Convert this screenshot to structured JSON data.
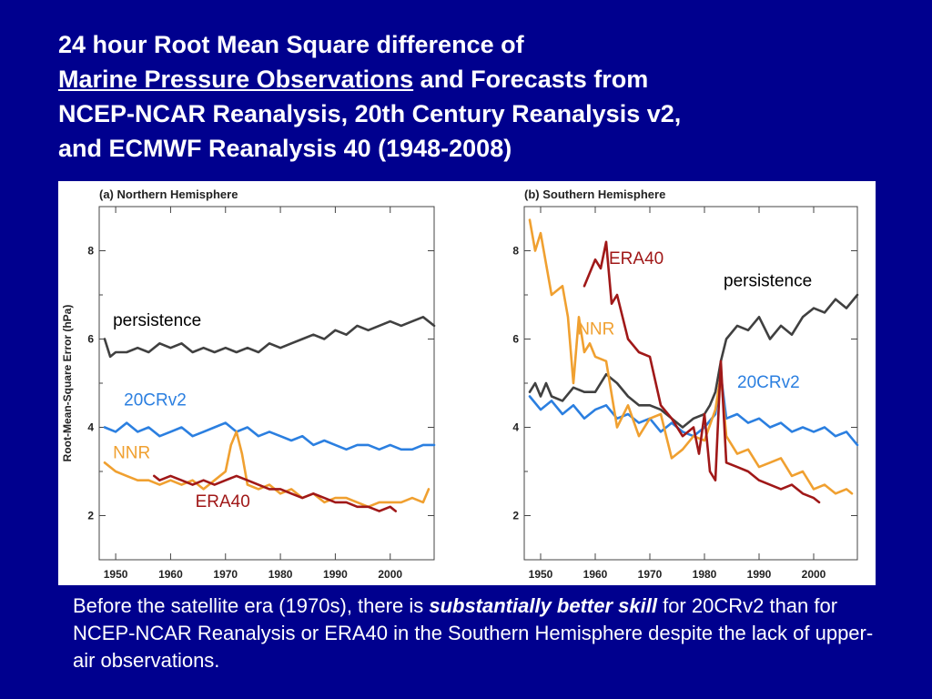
{
  "title": {
    "line1": "24 hour Root Mean Square difference of",
    "line2_underlined": "Marine Pressure Observations",
    "line2_rest": " and Forecasts from",
    "line3": "NCEP-NCAR Reanalysis, 20th Century Reanalysis v2,",
    "line4": "and ECMWF Reanalysis 40 (1948-2008)"
  },
  "caption": {
    "part1": "Before the satellite era (1970s), there is ",
    "emphasis": "substantially better skill",
    "part2": " for 20CRv2 than for NCEP-NCAR Reanalysis or ERA40 in the Southern Hemisphere despite the lack of upper-air observations."
  },
  "colors": {
    "background": "#00008e",
    "persistence": "#404040",
    "20CRv2": "#2b7fe0",
    "NNR": "#f0a030",
    "ERA40": "#a01818"
  },
  "chart_data": [
    {
      "type": "line",
      "title": "(a) Northern Hemisphere",
      "ylabel": "Root-Mean-Square Error (hPa)",
      "xlim": [
        1947,
        2008
      ],
      "ylim": [
        1,
        9
      ],
      "xticks": [
        1950,
        1960,
        1970,
        1980,
        1990,
        2000
      ],
      "yticks": [
        2,
        4,
        6,
        8
      ],
      "series": [
        {
          "name": "persistence",
          "color": "#404040",
          "x": [
            1948,
            1949,
            1950,
            1952,
            1954,
            1956,
            1958,
            1960,
            1962,
            1964,
            1966,
            1968,
            1970,
            1972,
            1974,
            1976,
            1978,
            1980,
            1982,
            1984,
            1986,
            1988,
            1990,
            1992,
            1994,
            1996,
            1998,
            2000,
            2002,
            2004,
            2006,
            2008
          ],
          "y": [
            6.0,
            5.6,
            5.7,
            5.7,
            5.8,
            5.7,
            5.9,
            5.8,
            5.9,
            5.7,
            5.8,
            5.7,
            5.8,
            5.7,
            5.8,
            5.7,
            5.9,
            5.8,
            5.9,
            6.0,
            6.1,
            6.0,
            6.2,
            6.1,
            6.3,
            6.2,
            6.3,
            6.4,
            6.3,
            6.4,
            6.5,
            6.3
          ]
        },
        {
          "name": "20CRv2",
          "color": "#2b7fe0",
          "x": [
            1948,
            1950,
            1952,
            1954,
            1956,
            1958,
            1960,
            1962,
            1964,
            1966,
            1968,
            1970,
            1972,
            1974,
            1976,
            1978,
            1980,
            1982,
            1984,
            1986,
            1988,
            1990,
            1992,
            1994,
            1996,
            1998,
            2000,
            2002,
            2004,
            2006,
            2008
          ],
          "y": [
            4.0,
            3.9,
            4.1,
            3.9,
            4.0,
            3.8,
            3.9,
            4.0,
            3.8,
            3.9,
            4.0,
            4.1,
            3.9,
            4.0,
            3.8,
            3.9,
            3.8,
            3.7,
            3.8,
            3.6,
            3.7,
            3.6,
            3.5,
            3.6,
            3.6,
            3.5,
            3.6,
            3.5,
            3.5,
            3.6,
            3.6
          ]
        },
        {
          "name": "NNR",
          "color": "#f0a030",
          "x": [
            1948,
            1950,
            1952,
            1954,
            1956,
            1958,
            1960,
            1962,
            1964,
            1966,
            1968,
            1970,
            1971,
            1972,
            1973,
            1974,
            1976,
            1978,
            1980,
            1982,
            1984,
            1986,
            1988,
            1990,
            1992,
            1994,
            1996,
            1998,
            2000,
            2002,
            2004,
            2006,
            2007
          ],
          "y": [
            3.2,
            3.0,
            2.9,
            2.8,
            2.8,
            2.7,
            2.8,
            2.7,
            2.8,
            2.6,
            2.8,
            3.0,
            3.6,
            3.9,
            3.4,
            2.7,
            2.6,
            2.7,
            2.5,
            2.6,
            2.4,
            2.5,
            2.3,
            2.4,
            2.4,
            2.3,
            2.2,
            2.3,
            2.3,
            2.3,
            2.4,
            2.3,
            2.6
          ]
        },
        {
          "name": "ERA40",
          "color": "#a01818",
          "x": [
            1957,
            1958,
            1960,
            1962,
            1964,
            1966,
            1968,
            1970,
            1972,
            1974,
            1976,
            1978,
            1980,
            1982,
            1984,
            1986,
            1988,
            1990,
            1992,
            1994,
            1996,
            1998,
            2000,
            2001
          ],
          "y": [
            2.9,
            2.8,
            2.9,
            2.8,
            2.7,
            2.8,
            2.7,
            2.8,
            2.9,
            2.8,
            2.7,
            2.6,
            2.6,
            2.5,
            2.4,
            2.5,
            2.4,
            2.3,
            2.3,
            2.2,
            2.2,
            2.1,
            2.2,
            2.1
          ]
        }
      ],
      "annotations": [
        {
          "text": "persistence",
          "x": 1949.5,
          "y": 6.3,
          "color": "#000000"
        },
        {
          "text": "20CRv2",
          "x": 1951.5,
          "y": 4.5,
          "color": "#2b7fe0"
        },
        {
          "text": "NNR",
          "x": 1949.5,
          "y": 3.3,
          "color": "#f0a030"
        },
        {
          "text": "ERA40",
          "x": 1964.5,
          "y": 2.2,
          "color": "#a01818"
        }
      ]
    },
    {
      "type": "line",
      "title": "(b) Southern Hemisphere",
      "ylabel": "",
      "xlim": [
        1947,
        2008
      ],
      "ylim": [
        1,
        9
      ],
      "xticks": [
        1950,
        1960,
        1970,
        1980,
        1990,
        2000
      ],
      "yticks": [
        2,
        4,
        6,
        8
      ],
      "series": [
        {
          "name": "persistence",
          "color": "#404040",
          "x": [
            1948,
            1949,
            1950,
            1951,
            1952,
            1954,
            1956,
            1958,
            1960,
            1962,
            1964,
            1966,
            1968,
            1970,
            1972,
            1974,
            1976,
            1978,
            1980,
            1981,
            1982,
            1983,
            1984,
            1986,
            1988,
            1990,
            1992,
            1994,
            1996,
            1998,
            2000,
            2002,
            2004,
            2006,
            2008
          ],
          "y": [
            4.8,
            5.0,
            4.7,
            5.0,
            4.7,
            4.6,
            4.9,
            4.8,
            4.8,
            5.2,
            5.0,
            4.7,
            4.5,
            4.5,
            4.4,
            4.2,
            4.0,
            4.2,
            4.3,
            4.5,
            4.8,
            5.5,
            6.0,
            6.3,
            6.2,
            6.5,
            6.0,
            6.3,
            6.1,
            6.5,
            6.7,
            6.6,
            6.9,
            6.7,
            7.0
          ]
        },
        {
          "name": "20CRv2",
          "color": "#2b7fe0",
          "x": [
            1948,
            1950,
            1952,
            1954,
            1956,
            1958,
            1960,
            1962,
            1964,
            1966,
            1968,
            1970,
            1972,
            1974,
            1976,
            1978,
            1980,
            1982,
            1983,
            1984,
            1986,
            1988,
            1990,
            1992,
            1994,
            1996,
            1998,
            2000,
            2002,
            2004,
            2006,
            2008
          ],
          "y": [
            4.7,
            4.4,
            4.6,
            4.3,
            4.5,
            4.2,
            4.4,
            4.5,
            4.2,
            4.3,
            4.1,
            4.2,
            3.9,
            4.1,
            3.9,
            3.8,
            4.0,
            4.3,
            5.2,
            4.2,
            4.3,
            4.1,
            4.2,
            4.0,
            4.1,
            3.9,
            4.0,
            3.9,
            4.0,
            3.8,
            3.9,
            3.6
          ]
        },
        {
          "name": "NNR",
          "color": "#f0a030",
          "x": [
            1948,
            1949,
            1950,
            1952,
            1954,
            1955,
            1956,
            1957,
            1958,
            1959,
            1960,
            1962,
            1964,
            1966,
            1968,
            1970,
            1972,
            1974,
            1976,
            1978,
            1980,
            1982,
            1983,
            1984,
            1986,
            1988,
            1990,
            1992,
            1994,
            1996,
            1998,
            2000,
            2002,
            2004,
            2006,
            2007
          ],
          "y": [
            8.7,
            8.0,
            8.4,
            7.0,
            7.2,
            6.5,
            5.0,
            6.5,
            5.7,
            5.9,
            5.6,
            5.5,
            4.0,
            4.5,
            3.8,
            4.2,
            4.3,
            3.3,
            3.5,
            3.8,
            3.7,
            4.4,
            5.2,
            3.8,
            3.4,
            3.5,
            3.1,
            3.2,
            3.3,
            2.9,
            3.0,
            2.6,
            2.7,
            2.5,
            2.6,
            2.5
          ]
        },
        {
          "name": "ERA40",
          "color": "#a01818",
          "x": [
            1958,
            1959,
            1960,
            1961,
            1962,
            1963,
            1964,
            1966,
            1968,
            1970,
            1972,
            1974,
            1976,
            1978,
            1979,
            1980,
            1981,
            1982,
            1983,
            1984,
            1986,
            1988,
            1990,
            1992,
            1994,
            1996,
            1998,
            2000,
            2001
          ],
          "y": [
            7.2,
            7.5,
            7.8,
            7.6,
            8.2,
            6.8,
            7.0,
            6.0,
            5.7,
            5.6,
            4.5,
            4.2,
            3.8,
            4.0,
            3.4,
            4.3,
            3.0,
            2.8,
            5.5,
            3.2,
            3.1,
            3.0,
            2.8,
            2.7,
            2.6,
            2.7,
            2.5,
            2.4,
            2.3
          ]
        }
      ],
      "annotations": [
        {
          "text": "ERA40",
          "x": 1962.5,
          "y": 7.7,
          "color": "#a01818"
        },
        {
          "text": "persistence",
          "x": 1983.5,
          "y": 7.2,
          "color": "#000000"
        },
        {
          "text": "NNR",
          "x": 1956.7,
          "y": 6.1,
          "color": "#f0a030"
        },
        {
          "text": "20CRv2",
          "x": 1986.0,
          "y": 4.9,
          "color": "#2b7fe0"
        }
      ]
    }
  ]
}
